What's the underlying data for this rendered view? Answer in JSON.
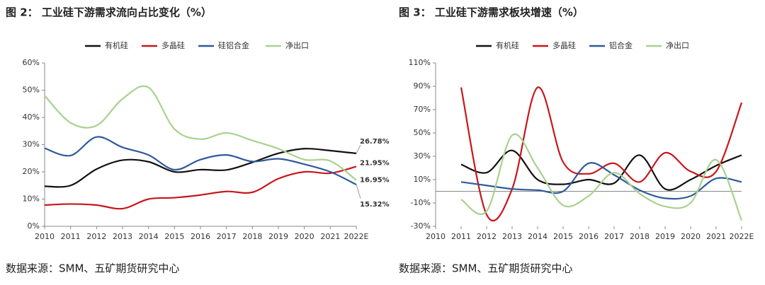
{
  "chart_data": [
    {
      "type": "line",
      "title": "图 2： 工业硅下游需求流向占比变化（%）",
      "source": "数据来源：SMM、五矿期货研究中心",
      "categories": [
        "2010",
        "2011",
        "2012",
        "2013",
        "2014",
        "2015",
        "2016",
        "2017",
        "2018",
        "2019",
        "2020",
        "2021",
        "2022E"
      ],
      "ylim": [
        0,
        60
      ],
      "yticks": [
        {
          "value": 0,
          "label": "0%"
        },
        {
          "value": 10,
          "label": "10%"
        },
        {
          "value": 20,
          "label": "20%"
        },
        {
          "value": 30,
          "label": "30%"
        },
        {
          "value": 40,
          "label": "40%"
        },
        {
          "value": 50,
          "label": "50%"
        },
        {
          "value": 60,
          "label": "60%"
        }
      ],
      "legend": "top",
      "series": [
        {
          "name": "有机硅",
          "color": "#111111",
          "values": [
            14.7,
            15,
            21,
            24.3,
            23.7,
            20,
            20.8,
            20.7,
            23.5,
            26.8,
            28.5,
            27.8,
            26.78
          ],
          "value_labels": [
            null,
            null,
            null,
            null,
            null,
            null,
            null,
            null,
            null,
            null,
            null,
            null,
            "26.78%"
          ]
        },
        {
          "name": "多晶硅",
          "color": "#c8161d",
          "values": [
            7.8,
            8.2,
            7.8,
            6.5,
            10,
            10.5,
            11.5,
            12.8,
            12.5,
            17.5,
            20,
            19.5,
            21.95
          ],
          "value_labels": [
            null,
            null,
            null,
            null,
            null,
            null,
            null,
            null,
            null,
            null,
            null,
            null,
            "21.95%"
          ]
        },
        {
          "name": "硅铝合金",
          "color": "#2e5a9c",
          "values": [
            28.7,
            26,
            32.8,
            29,
            26.2,
            20.8,
            24.5,
            26.2,
            23.8,
            24.8,
            22.8,
            20,
            15.32
          ],
          "value_labels": [
            null,
            null,
            null,
            null,
            null,
            null,
            null,
            null,
            null,
            null,
            null,
            null,
            "15.32%"
          ]
        },
        {
          "name": "净出口",
          "color": "#a9d18e",
          "values": [
            48,
            38,
            37,
            46.8,
            51,
            35.7,
            32,
            34.3,
            31.5,
            28.5,
            24.5,
            24,
            16.95
          ],
          "value_labels": [
            null,
            null,
            null,
            null,
            null,
            null,
            null,
            null,
            null,
            null,
            null,
            null,
            "16.95%"
          ]
        }
      ]
    },
    {
      "type": "line",
      "title": "图 3： 工业硅下游需求板块增速（%）",
      "source": "数据来源：SMM、五矿期货研究中心",
      "categories": [
        "2010",
        "2011",
        "2012",
        "2013",
        "2014",
        "2015",
        "2016",
        "2017",
        "2018",
        "2019",
        "2020",
        "2021",
        "2022E"
      ],
      "ylim": [
        -30,
        110
      ],
      "yticks": [
        {
          "value": -30,
          "label": "-30%"
        },
        {
          "value": -10,
          "label": "-10%"
        },
        {
          "value": 10,
          "label": "10%"
        },
        {
          "value": 30,
          "label": "30%"
        },
        {
          "value": 50,
          "label": "50%"
        },
        {
          "value": 70,
          "label": "70%"
        },
        {
          "value": 90,
          "label": "90%"
        },
        {
          "value": 110,
          "label": "110%"
        }
      ],
      "legend": "top",
      "series": [
        {
          "name": "有机硅",
          "color": "#111111",
          "values": [
            null,
            23,
            16,
            35,
            10,
            6,
            10,
            7,
            31,
            2,
            10,
            22,
            31
          ]
        },
        {
          "name": "多晶硅",
          "color": "#c8161d",
          "values": [
            null,
            89,
            -20,
            2,
            89,
            25,
            15,
            24,
            8,
            33,
            17,
            17,
            76
          ]
        },
        {
          "name": "铝合金",
          "color": "#2e5a9c",
          "values": [
            null,
            8,
            5,
            2,
            1,
            0,
            24,
            14,
            1,
            -6,
            -4,
            11,
            8
          ]
        },
        {
          "name": "净出口",
          "color": "#a9d18e",
          "values": [
            null,
            -7,
            -17,
            48,
            20,
            -12,
            -4,
            16,
            -2,
            -13,
            -10,
            27,
            -25
          ]
        }
      ]
    }
  ]
}
